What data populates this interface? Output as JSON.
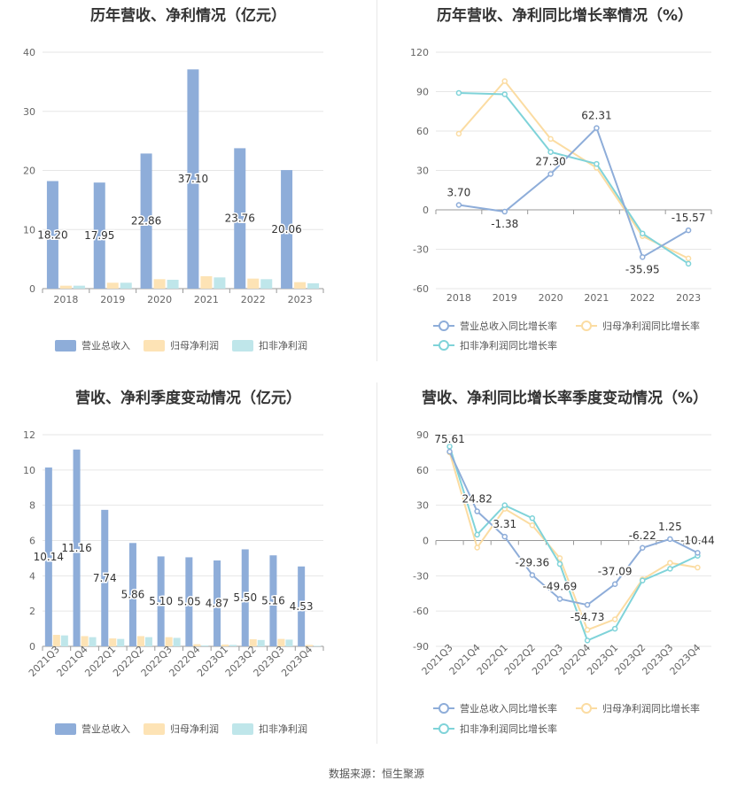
{
  "source": "数据来源：恒生聚源",
  "colors": {
    "revenue": "#8eadd9",
    "net_profit": "#fde3b5",
    "deducted": "#bfe6ea",
    "revenue_line": "#8eadd9",
    "net_profit_line": "#fbdca2",
    "deducted_line": "#7fd3d9"
  },
  "chart_data": [
    {
      "type": "bar",
      "title": "历年营收、净利情况（亿元）",
      "categories": [
        "2018",
        "2019",
        "2020",
        "2021",
        "2022",
        "2023"
      ],
      "ylim": [
        0,
        40
      ],
      "yticks": [
        "0",
        "10",
        "20",
        "30",
        "40"
      ],
      "series": [
        {
          "name": "营业总收入",
          "values": [
            18.2,
            17.95,
            22.86,
            37.1,
            23.76,
            20.06
          ],
          "labels": [
            "18.20",
            "17.95",
            "22.86",
            "37.10",
            "23.76",
            "20.06"
          ]
        },
        {
          "name": "归母净利润",
          "values": [
            0.5,
            1.0,
            1.6,
            2.1,
            1.7,
            1.1
          ]
        },
        {
          "name": "扣非净利润",
          "values": [
            0.5,
            1.0,
            1.5,
            1.9,
            1.6,
            0.9
          ]
        }
      ],
      "grid": true,
      "legend": "bottom"
    },
    {
      "type": "line",
      "title": "历年营收、净利同比增长率情况（%）",
      "categories": [
        "2018",
        "2019",
        "2020",
        "2021",
        "2022",
        "2023"
      ],
      "ylim": [
        -60,
        120
      ],
      "yticks": [
        "-60",
        "-30",
        "0",
        "30",
        "60",
        "90",
        "120"
      ],
      "series": [
        {
          "name": "营业总收入同比增长率",
          "values": [
            3.7,
            -1.38,
            27.3,
            62.31,
            -35.95,
            -15.57
          ],
          "labels": [
            "3.70",
            "-1.38",
            "27.30",
            "62.31",
            "-35.95",
            "-15.57"
          ]
        },
        {
          "name": "归母净利润同比增长率",
          "values": [
            58,
            98,
            54,
            32,
            -20,
            -37
          ]
        },
        {
          "name": "扣非净利润同比增长率",
          "values": [
            89,
            88,
            44,
            35,
            -18,
            -41
          ]
        }
      ],
      "grid": true,
      "legend": "bottom"
    },
    {
      "type": "bar",
      "title": "营收、净利季度变动情况（亿元）",
      "categories": [
        "2021Q3",
        "2021Q4",
        "2022Q1",
        "2022Q2",
        "2022Q3",
        "2022Q4",
        "2023Q1",
        "2023Q2",
        "2023Q3",
        "2023Q4"
      ],
      "ylim": [
        0,
        12
      ],
      "yticks": [
        "0",
        "2",
        "4",
        "6",
        "8",
        "10",
        "12"
      ],
      "series": [
        {
          "name": "营业总收入",
          "values": [
            10.14,
            11.16,
            7.74,
            5.86,
            5.1,
            5.05,
            4.87,
            5.5,
            5.16,
            4.53
          ],
          "labels": [
            "10.14",
            "11.16",
            "7.74",
            "5.86",
            "5.10",
            "5.05",
            "4.87",
            "5.50",
            "5.16",
            "4.53"
          ]
        },
        {
          "name": "归母净利润",
          "values": [
            0.65,
            0.58,
            0.45,
            0.58,
            0.52,
            0.12,
            0.1,
            0.4,
            0.42,
            0.08
          ]
        },
        {
          "name": "扣非净利润",
          "values": [
            0.62,
            0.52,
            0.42,
            0.52,
            0.48,
            0.05,
            0.08,
            0.36,
            0.38,
            0.03
          ]
        }
      ],
      "grid": true,
      "legend": "bottom"
    },
    {
      "type": "line",
      "title": "营收、净利同比增长率季度变动情况（%）",
      "categories": [
        "2021Q3",
        "2021Q4",
        "2022Q1",
        "2022Q2",
        "2022Q3",
        "2022Q4",
        "2023Q1",
        "2023Q2",
        "2023Q3",
        "2023Q4"
      ],
      "ylim": [
        -90,
        90
      ],
      "yticks": [
        "-90",
        "-60",
        "-30",
        "0",
        "30",
        "60",
        "90"
      ],
      "series": [
        {
          "name": "营业总收入同比增长率",
          "values": [
            75.61,
            24.82,
            3.31,
            -29.36,
            -49.69,
            -54.73,
            -37.09,
            -6.22,
            1.25,
            -10.44
          ],
          "labels": [
            "75.61",
            "24.82",
            "3.31",
            "-29.36",
            "-49.69",
            "-54.73",
            "-37.09",
            "-6.22",
            "1.25",
            "-10.44"
          ]
        },
        {
          "name": "归母净利润同比增长率",
          "values": [
            75,
            -6,
            27,
            13,
            -15,
            -76,
            -67,
            -33,
            -19,
            -23
          ]
        },
        {
          "name": "扣非净利润同比增长率",
          "values": [
            80,
            5,
            30,
            19,
            -20,
            -85,
            -75,
            -34,
            -24,
            -13
          ]
        }
      ],
      "grid": true,
      "legend": "bottom"
    }
  ]
}
